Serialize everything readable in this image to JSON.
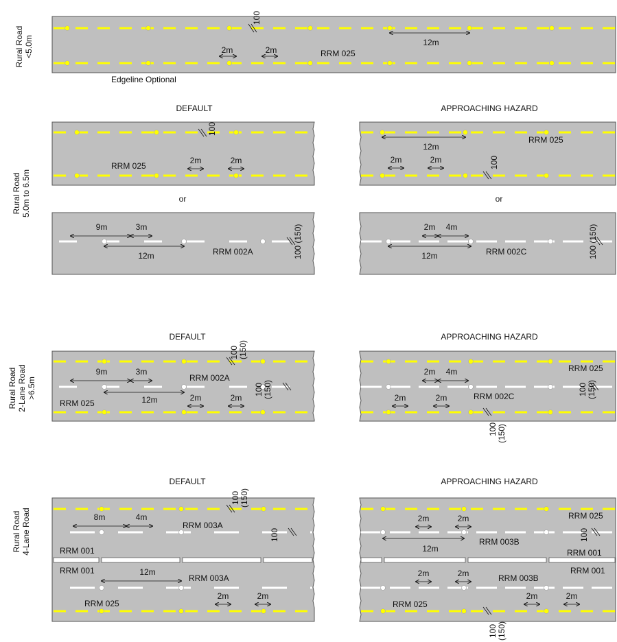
{
  "row_labels": {
    "r1": [
      "Rural Road",
      "<5.0m"
    ],
    "r2": [
      "Rural Road",
      "5.0m to 6.5m"
    ],
    "r3": [
      "Rural Road",
      "2-Lane Road",
      ">6.5m"
    ],
    "r4": [
      "Rural Road",
      "4-Lane Road"
    ]
  },
  "headers": {
    "default": "DEFAULT",
    "hazard": "APPROACHING HAZARD",
    "or": "or"
  },
  "codes": {
    "rrm025": "RRM 025",
    "rrm002a": "RRM 002A",
    "rrm002c": "RRM 002C",
    "rrm003a": "RRM 003A",
    "rrm003b": "RRM 003B",
    "rrm001": "RRM 001"
  },
  "dims": {
    "d2m": "2m",
    "d3m": "3m",
    "d4m": "4m",
    "d8m": "8m",
    "d9m": "9m",
    "d12m": "12m",
    "d100": "100",
    "d150": "(150)",
    "d100_150": "100 (150)"
  },
  "notes": {
    "edgeline_optional": "Edgeline Optional"
  },
  "colors": {
    "road": "#bfbfbf",
    "yellow": "#ffff00",
    "white": "#ffffff",
    "edge": "#555555",
    "text": "#111111"
  }
}
